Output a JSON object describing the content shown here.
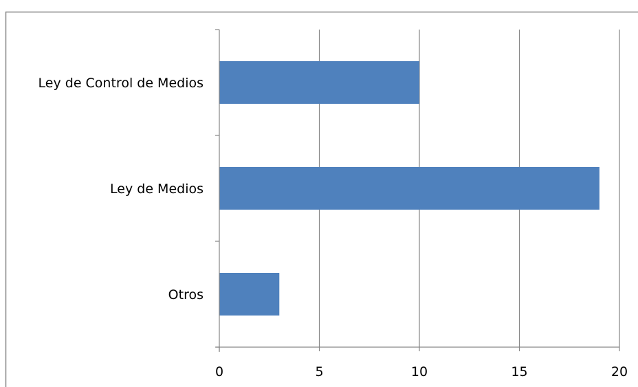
{
  "chart_data": {
    "type": "bar",
    "orientation": "horizontal",
    "categories": [
      "Ley de Control de Medios",
      "Ley de Medios",
      "Otros"
    ],
    "values": [
      10,
      19,
      3
    ],
    "xlim": [
      0,
      20
    ],
    "xticks": [
      0,
      5,
      10,
      15,
      20
    ],
    "grid": true,
    "legend": "none",
    "colors": {
      "bar": "#4F81BD",
      "grid": "#868686",
      "axis": "#868686",
      "border": "#868686",
      "text": "#000000"
    }
  }
}
